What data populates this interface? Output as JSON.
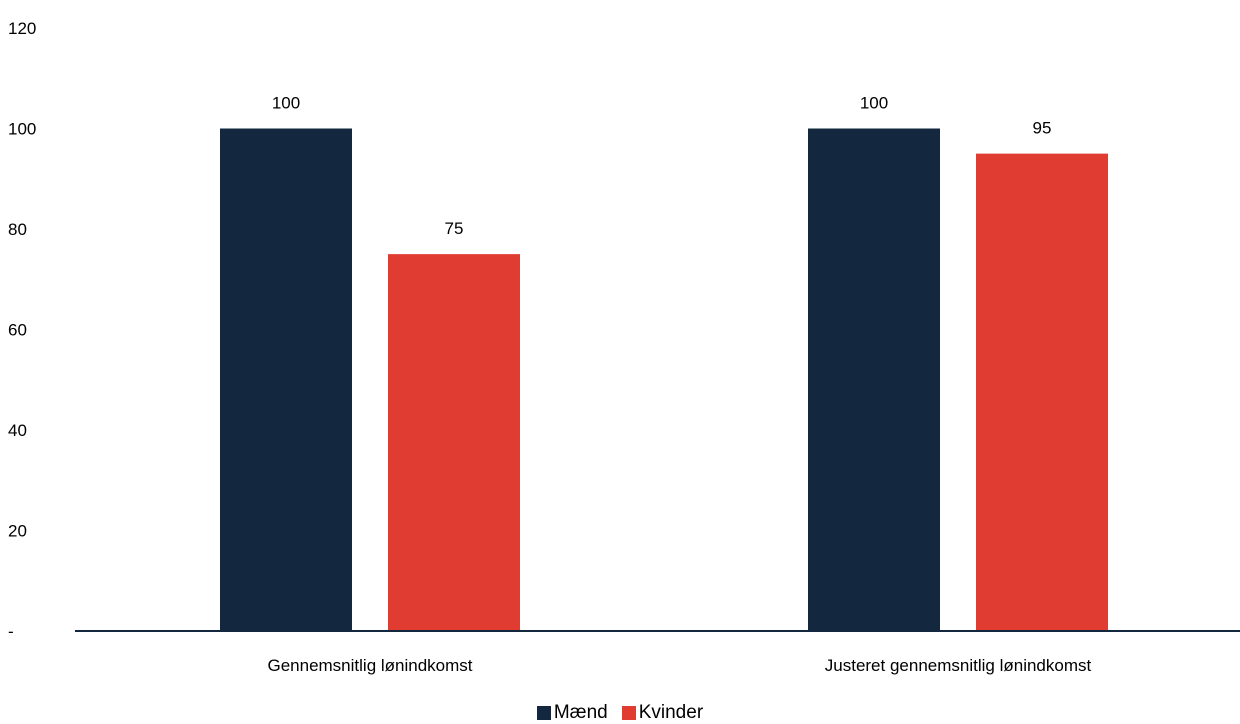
{
  "chart_data": {
    "type": "bar",
    "categories": [
      "Gennemsnitlig lønindkomst",
      "Justeret gennemsnitlig lønindkomst"
    ],
    "series": [
      {
        "name": "Mænd",
        "values": [
          100,
          100
        ],
        "color": "#13283e"
      },
      {
        "name": "Kvinder",
        "values": [
          75,
          95
        ],
        "color": "#e03c31"
      }
    ],
    "data_labels": [
      [
        "100",
        "100"
      ],
      [
        "75",
        "95"
      ]
    ],
    "y_ticks": [
      {
        "value": 0,
        "label": "-"
      },
      {
        "value": 20,
        "label": "20"
      },
      {
        "value": 40,
        "label": "40"
      },
      {
        "value": 60,
        "label": "60"
      },
      {
        "value": 80,
        "label": "80"
      },
      {
        "value": 100,
        "label": "100"
      },
      {
        "value": 120,
        "label": "120"
      }
    ],
    "ylim": [
      0,
      120
    ],
    "grid": false,
    "axis_color": "#13283e",
    "legend_position": "bottom"
  }
}
